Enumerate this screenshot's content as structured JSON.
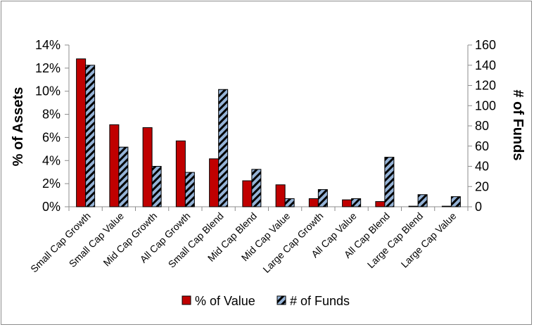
{
  "chart_data": {
    "type": "bar",
    "categories": [
      "Small Cap Growth",
      "Small Cap Value",
      "Mid Cap Growth",
      "All Cap Growth",
      "Small Cap Blend",
      "Mid Cap Blend",
      "Mid Cap Value",
      "Large Cap Growth",
      "All Cap Value",
      "All Cap Blend",
      "Large Cap Blend",
      "Large Cap Value"
    ],
    "series": [
      {
        "name": "% of Value",
        "axis": "left",
        "color": "#c00000",
        "values": [
          12.8,
          7.1,
          6.85,
          5.7,
          4.15,
          2.25,
          1.9,
          0.7,
          0.6,
          0.45,
          0.05,
          0.05
        ]
      },
      {
        "name": "# of Funds",
        "axis": "right",
        "color": "#95b3d7",
        "pattern": "diagonal-stripes-black",
        "values": [
          140,
          59,
          40,
          34,
          116,
          37,
          8,
          17,
          8,
          49,
          12,
          10
        ]
      }
    ],
    "ylabel": "% of Assets",
    "y2label": "# of Funds",
    "ylim": [
      0,
      14
    ],
    "y2lim": [
      0,
      160
    ],
    "yticks": [
      "0%",
      "2%",
      "4%",
      "6%",
      "8%",
      "10%",
      "12%",
      "14%"
    ],
    "y2ticks": [
      "0",
      "20",
      "40",
      "60",
      "80",
      "100",
      "120",
      "140",
      "160"
    ],
    "legend_position": "bottom",
    "grid": false
  }
}
